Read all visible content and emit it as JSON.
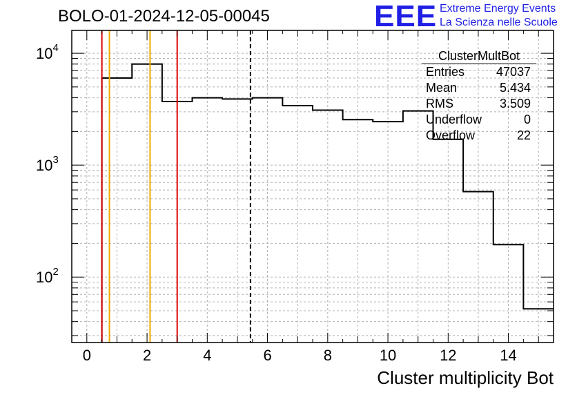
{
  "header": {
    "run_title": "BOLO-01-2024-12-05-00045"
  },
  "logo": {
    "mark": "EEE",
    "line1": "Extreme Energy Events",
    "line2": "La Scienza nelle Scuole",
    "color": "#1f1fe6"
  },
  "stats": {
    "title": "ClusterMultBot",
    "rows": [
      {
        "label": "Entries",
        "value": "47037"
      },
      {
        "label": "Mean",
        "value": "5.434"
      },
      {
        "label": "RMS",
        "value": "3.509"
      },
      {
        "label": "Underflow",
        "value": "0"
      },
      {
        "label": "Overflow",
        "value": "22"
      }
    ]
  },
  "chart_data": {
    "type": "histogram",
    "title": "BOLO-01-2024-12-05-00045",
    "xlabel": "Cluster multiplicity Bot",
    "ylabel": "",
    "yscale": "log",
    "xlim": [
      -0.5,
      15.5
    ],
    "ylim": [
      26,
      16000
    ],
    "grid": true,
    "bin_edges": [
      0.5,
      1.5,
      2.5,
      3.5,
      4.5,
      5.5,
      6.5,
      7.5,
      8.5,
      9.5,
      10.5,
      11.5,
      12.5,
      13.5,
      14.5,
      15.5
    ],
    "counts": [
      6000,
      8000,
      3700,
      4000,
      3900,
      4000,
      3400,
      3100,
      2550,
      2450,
      3050,
      1700,
      580,
      195,
      52
    ],
    "x_ticks": [
      0,
      2,
      4,
      6,
      8,
      10,
      12,
      14
    ],
    "y_ticks": [
      {
        "value": 100,
        "base": "10",
        "exp": "2"
      },
      {
        "value": 1000,
        "base": "10",
        "exp": "3"
      },
      {
        "value": 10000,
        "base": "10",
        "exp": "4"
      }
    ],
    "vertical_lines": [
      {
        "x": 0.5,
        "color": "#e00000",
        "style": "solid"
      },
      {
        "x": 0.75,
        "color": "#f0a800",
        "style": "solid"
      },
      {
        "x": 2.1,
        "color": "#f0a800",
        "style": "solid"
      },
      {
        "x": 3.0,
        "color": "#e00000",
        "style": "solid"
      },
      {
        "x": 5.434,
        "color": "#000000",
        "style": "dashed"
      }
    ],
    "line_color": "#000000"
  }
}
